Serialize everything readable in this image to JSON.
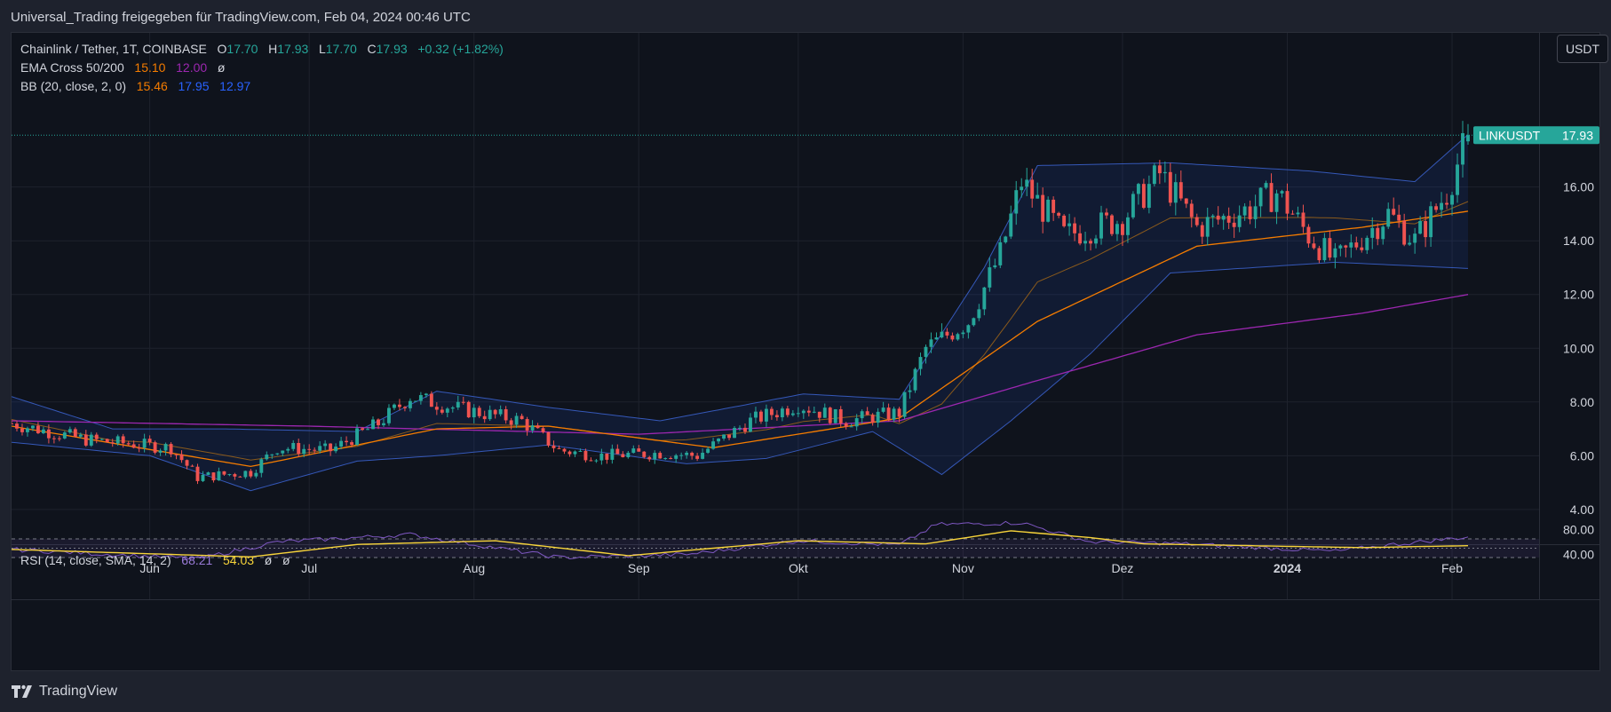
{
  "header": {
    "title": "Universal_Trading freigegeben für TradingView.com, Feb 04, 2024 00:46 UTC"
  },
  "footer": {
    "brand": "TradingView"
  },
  "currency_button": "USDT",
  "legend": {
    "symbol": "Chainlink / Tether, 1T, COINBASE",
    "o_label": "O",
    "o_value": "17.70",
    "h_label": "H",
    "h_value": "17.93",
    "l_label": "L",
    "l_value": "17.70",
    "c_label": "C",
    "c_value": "17.93",
    "change": "+0.32 (+1.82%)",
    "ema_label": "EMA Cross 50/200",
    "ema_fast": "15.10",
    "ema_slow": "12.00",
    "ema_extra": "ø",
    "bb_label": "BB (20, close, 2, 0)",
    "bb_basis": "15.46",
    "bb_upper": "17.95",
    "bb_lower": "12.97",
    "rsi_label": "RSI (14, close, SMA, 14, 2)",
    "rsi_value": "68.21",
    "rsi_ma": "54.03",
    "rsi_x1": "ø",
    "rsi_x2": "ø"
  },
  "price_tag": {
    "symbol": "LINKUSDT",
    "value": "17.93"
  },
  "colors": {
    "up": "#26a69a",
    "down": "#ef5350",
    "ema50": "#f57c00",
    "ema200": "#9c27b0",
    "bb": "#2962ff",
    "rsi": "#7e57c2",
    "rsi_ma": "#f7d43a",
    "background": "#0f131c"
  },
  "chart_data": [
    {
      "type": "candlestick",
      "title": "Chainlink / Tether, 1T, COINBASE",
      "y_axis_ticks": [
        "4.00",
        "6.00",
        "8.00",
        "10.00",
        "12.00",
        "14.00",
        "16.00"
      ],
      "ylim": [
        3.5,
        18.5
      ],
      "x_axis_labels": [
        "Jun",
        "Jul",
        "Aug",
        "Sep",
        "Okt",
        "Nov",
        "Dez",
        "2024",
        "Feb"
      ],
      "x_axis_dates": [
        "2023-06-01",
        "2023-07-01",
        "2023-08-01",
        "2023-09-01",
        "2023-10-01",
        "2023-11-01",
        "2023-12-01",
        "2024-01-01",
        "2024-02-01"
      ],
      "date_range": [
        "2023-05-06",
        "2024-02-04"
      ],
      "last_close": 17.93,
      "price_anchors": [
        {
          "date": "2023-05-06",
          "close": 7.2
        },
        {
          "date": "2023-05-20",
          "close": 6.6
        },
        {
          "date": "2023-06-05",
          "close": 6.3
        },
        {
          "date": "2023-06-10",
          "close": 5.2
        },
        {
          "date": "2023-06-20",
          "close": 5.4
        },
        {
          "date": "2023-06-25",
          "close": 6.3
        },
        {
          "date": "2023-07-05",
          "close": 6.2
        },
        {
          "date": "2023-07-14",
          "close": 7.2
        },
        {
          "date": "2023-07-20",
          "close": 8.2
        },
        {
          "date": "2023-07-28",
          "close": 7.8
        },
        {
          "date": "2023-08-10",
          "close": 7.3
        },
        {
          "date": "2023-08-17",
          "close": 6.2
        },
        {
          "date": "2023-08-25",
          "close": 6.0
        },
        {
          "date": "2023-09-05",
          "close": 6.1
        },
        {
          "date": "2023-09-12",
          "close": 6.0
        },
        {
          "date": "2023-09-22",
          "close": 7.3
        },
        {
          "date": "2023-10-01",
          "close": 7.9
        },
        {
          "date": "2023-10-10",
          "close": 7.3
        },
        {
          "date": "2023-10-20",
          "close": 7.6
        },
        {
          "date": "2023-10-25",
          "close": 10.0
        },
        {
          "date": "2023-11-02",
          "close": 11.0
        },
        {
          "date": "2023-11-08",
          "close": 13.5
        },
        {
          "date": "2023-11-12",
          "close": 16.2
        },
        {
          "date": "2023-11-20",
          "close": 14.2
        },
        {
          "date": "2023-12-01",
          "close": 14.8
        },
        {
          "date": "2023-12-08",
          "close": 16.5
        },
        {
          "date": "2023-12-15",
          "close": 14.5
        },
        {
          "date": "2023-12-25",
          "close": 15.2
        },
        {
          "date": "2023-12-30",
          "close": 15.8
        },
        {
          "date": "2024-01-05",
          "close": 14.2
        },
        {
          "date": "2024-01-10",
          "close": 13.2
        },
        {
          "date": "2024-01-20",
          "close": 15.0
        },
        {
          "date": "2024-01-25",
          "close": 14.0
        },
        {
          "date": "2024-01-31",
          "close": 15.8
        },
        {
          "date": "2024-02-04",
          "close": 17.93
        }
      ],
      "ema50_anchors": [
        {
          "date": "2023-05-06",
          "value": 7.1
        },
        {
          "date": "2023-06-20",
          "value": 5.6
        },
        {
          "date": "2023-07-25",
          "value": 7.0
        },
        {
          "date": "2023-08-15",
          "value": 7.1
        },
        {
          "date": "2023-09-15",
          "value": 6.3
        },
        {
          "date": "2023-10-20",
          "value": 7.4
        },
        {
          "date": "2023-11-15",
          "value": 11.0
        },
        {
          "date": "2023-12-15",
          "value": 13.8
        },
        {
          "date": "2024-01-15",
          "value": 14.5
        },
        {
          "date": "2024-02-04",
          "value": 15.1
        }
      ],
      "ema200_anchors": [
        {
          "date": "2023-05-06",
          "value": 7.3
        },
        {
          "date": "2023-07-01",
          "value": 7.1
        },
        {
          "date": "2023-09-01",
          "value": 6.8
        },
        {
          "date": "2023-10-20",
          "value": 7.3
        },
        {
          "date": "2023-11-15",
          "value": 8.8
        },
        {
          "date": "2023-12-15",
          "value": 10.5
        },
        {
          "date": "2024-01-15",
          "value": 11.3
        },
        {
          "date": "2024-02-04",
          "value": 12.0
        }
      ],
      "bb_upper_anchors": [
        {
          "date": "2023-05-06",
          "value": 8.2
        },
        {
          "date": "2023-05-25",
          "value": 7.0
        },
        {
          "date": "2023-06-15",
          "value": 7.0
        },
        {
          "date": "2023-07-10",
          "value": 6.9
        },
        {
          "date": "2023-07-25",
          "value": 8.4
        },
        {
          "date": "2023-08-15",
          "value": 7.8
        },
        {
          "date": "2023-09-05",
          "value": 7.3
        },
        {
          "date": "2023-10-02",
          "value": 8.3
        },
        {
          "date": "2023-10-20",
          "value": 8.1
        },
        {
          "date": "2023-11-05",
          "value": 13.0
        },
        {
          "date": "2023-11-15",
          "value": 16.8
        },
        {
          "date": "2023-12-10",
          "value": 16.9
        },
        {
          "date": "2024-01-05",
          "value": 16.6
        },
        {
          "date": "2024-01-25",
          "value": 16.2
        },
        {
          "date": "2024-02-04",
          "value": 17.95
        }
      ],
      "bb_lower_anchors": [
        {
          "date": "2023-05-06",
          "value": 6.5
        },
        {
          "date": "2023-06-01",
          "value": 6.0
        },
        {
          "date": "2023-06-20",
          "value": 4.7
        },
        {
          "date": "2023-07-10",
          "value": 5.8
        },
        {
          "date": "2023-07-25",
          "value": 6.0
        },
        {
          "date": "2023-08-15",
          "value": 6.4
        },
        {
          "date": "2023-09-10",
          "value": 5.7
        },
        {
          "date": "2023-09-25",
          "value": 5.9
        },
        {
          "date": "2023-10-15",
          "value": 6.9
        },
        {
          "date": "2023-10-28",
          "value": 5.3
        },
        {
          "date": "2023-11-10",
          "value": 7.3
        },
        {
          "date": "2023-11-25",
          "value": 9.8
        },
        {
          "date": "2023-12-10",
          "value": 12.8
        },
        {
          "date": "2024-01-10",
          "value": 13.2
        },
        {
          "date": "2024-02-04",
          "value": 12.97
        }
      ]
    },
    {
      "type": "line",
      "title": "RSI (14, close, SMA, 14, 2)",
      "y_axis_ticks": [
        "40.00",
        "80.00"
      ],
      "ylim": [
        25,
        95
      ],
      "bands": [
        35,
        50,
        65
      ],
      "series": [
        {
          "name": "RSI",
          "anchors": [
            {
              "date": "2023-05-06",
              "value": 48
            },
            {
              "date": "2023-06-10",
              "value": 33
            },
            {
              "date": "2023-06-25",
              "value": 60
            },
            {
              "date": "2023-07-20",
              "value": 72
            },
            {
              "date": "2023-08-17",
              "value": 35
            },
            {
              "date": "2023-09-10",
              "value": 40
            },
            {
              "date": "2023-10-01",
              "value": 62
            },
            {
              "date": "2023-10-20",
              "value": 55
            },
            {
              "date": "2023-10-27",
              "value": 88
            },
            {
              "date": "2023-11-12",
              "value": 91
            },
            {
              "date": "2023-11-25",
              "value": 60
            },
            {
              "date": "2023-12-10",
              "value": 58
            },
            {
              "date": "2024-01-10",
              "value": 45
            },
            {
              "date": "2024-01-20",
              "value": 55
            },
            {
              "date": "2024-02-04",
              "value": 68.21
            }
          ]
        },
        {
          "name": "MA",
          "anchors": [
            {
              "date": "2023-05-06",
              "value": 48
            },
            {
              "date": "2023-06-20",
              "value": 36
            },
            {
              "date": "2023-07-10",
              "value": 56
            },
            {
              "date": "2023-08-05",
              "value": 62
            },
            {
              "date": "2023-08-30",
              "value": 38
            },
            {
              "date": "2023-10-01",
              "value": 62
            },
            {
              "date": "2023-10-25",
              "value": 57
            },
            {
              "date": "2023-11-10",
              "value": 78
            },
            {
              "date": "2023-11-25",
              "value": 67
            },
            {
              "date": "2023-12-05",
              "value": 57
            },
            {
              "date": "2024-01-15",
              "value": 51
            },
            {
              "date": "2024-02-04",
              "value": 54.03
            }
          ]
        }
      ]
    }
  ]
}
